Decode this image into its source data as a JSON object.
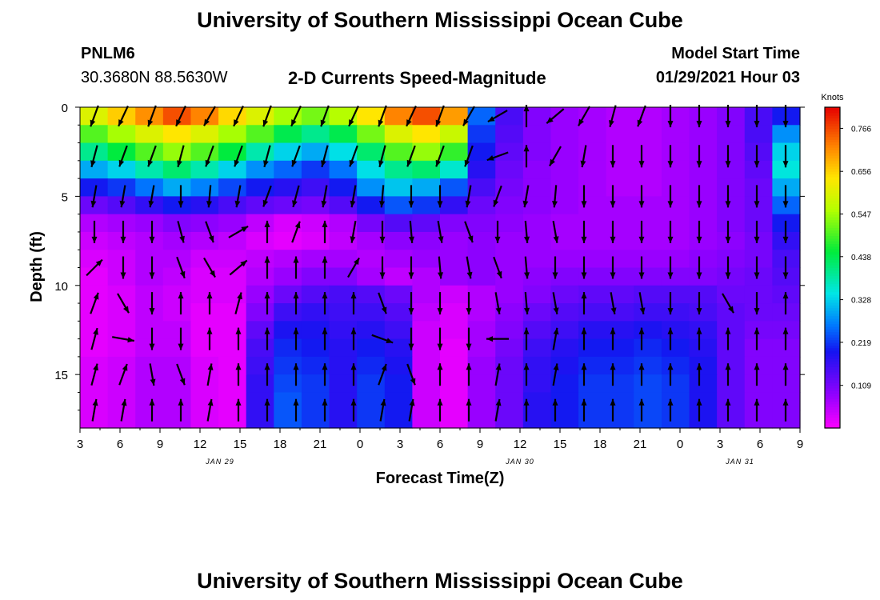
{
  "header": {
    "title_top": "University of Southern Mississippi Ocean Cube",
    "station_id": "PNLM6",
    "station_coords": "30.3680N 88.5630W",
    "chart_title": "2-D Currents Speed-Magnitude",
    "model_start_label": "Model Start Time",
    "model_start_value": "01/29/2021 Hour 03",
    "title_bottom": "University of Southern Mississippi Ocean Cube"
  },
  "chart_data": {
    "type": "heatmap",
    "title": "2-D Currents Speed-Magnitude",
    "xlabel": "Forecast Time(Z)",
    "ylabel": "Depth (ft)",
    "x_ticks": [
      "3",
      "6",
      "9",
      "12",
      "15",
      "18",
      "21",
      "0",
      "3",
      "6",
      "9",
      "12",
      "15",
      "18",
      "21",
      "0",
      "3",
      "6",
      "9"
    ],
    "date_labels": [
      {
        "label": "JAN 29",
        "at_tick": 3.5
      },
      {
        "label": "JAN 30",
        "at_tick": 11
      },
      {
        "label": "JAN 31",
        "at_tick": 16.5
      }
    ],
    "y_ticks": [
      0,
      5,
      10,
      15
    ],
    "ylim": [
      0,
      18
    ],
    "colorbar": {
      "unit": "Knots",
      "range": [
        0,
        0.82
      ],
      "tick_values": [
        0.766,
        0.656,
        0.547,
        0.438,
        0.328,
        0.219,
        0.109
      ],
      "tick_labels": [
        "0.766",
        "0.656",
        "0.547",
        "0.438",
        "0.328",
        "0.219",
        "0.109"
      ]
    },
    "speed_knots_by_depth": [
      {
        "depth_ft": 0.5,
        "values": [
          0.6,
          0.66,
          0.71,
          0.76,
          0.72,
          0.65,
          0.6,
          0.55,
          0.52,
          0.56,
          0.64,
          0.72,
          0.76,
          0.7,
          0.25,
          0.15,
          0.1,
          0.08,
          0.07,
          0.06,
          0.06,
          0.07,
          0.08,
          0.1,
          0.15,
          0.2
        ]
      },
      {
        "depth_ft": 1.5,
        "values": [
          0.5,
          0.55,
          0.6,
          0.64,
          0.6,
          0.55,
          0.5,
          0.44,
          0.4,
          0.44,
          0.52,
          0.6,
          0.64,
          0.58,
          0.22,
          0.14,
          0.1,
          0.08,
          0.07,
          0.06,
          0.06,
          0.07,
          0.08,
          0.1,
          0.15,
          0.28
        ]
      },
      {
        "depth_ft": 2.5,
        "values": [
          0.4,
          0.45,
          0.5,
          0.54,
          0.5,
          0.45,
          0.38,
          0.33,
          0.3,
          0.34,
          0.42,
          0.5,
          0.54,
          0.48,
          0.2,
          0.13,
          0.1,
          0.08,
          0.07,
          0.06,
          0.06,
          0.07,
          0.08,
          0.1,
          0.14,
          0.33
        ]
      },
      {
        "depth_ft": 3.5,
        "values": [
          0.3,
          0.33,
          0.38,
          0.42,
          0.38,
          0.33,
          0.28,
          0.25,
          0.22,
          0.26,
          0.34,
          0.4,
          0.42,
          0.36,
          0.18,
          0.12,
          0.09,
          0.08,
          0.07,
          0.06,
          0.06,
          0.07,
          0.08,
          0.1,
          0.13,
          0.35
        ]
      },
      {
        "depth_ft": 4.5,
        "values": [
          0.2,
          0.22,
          0.26,
          0.3,
          0.27,
          0.23,
          0.2,
          0.18,
          0.16,
          0.2,
          0.28,
          0.32,
          0.3,
          0.24,
          0.15,
          0.11,
          0.09,
          0.08,
          0.07,
          0.06,
          0.06,
          0.07,
          0.08,
          0.1,
          0.12,
          0.3
        ]
      },
      {
        "depth_ft": 5.5,
        "values": [
          0.12,
          0.14,
          0.17,
          0.2,
          0.18,
          0.15,
          0.13,
          0.12,
          0.11,
          0.14,
          0.2,
          0.24,
          0.22,
          0.17,
          0.12,
          0.1,
          0.09,
          0.08,
          0.07,
          0.07,
          0.07,
          0.07,
          0.08,
          0.1,
          0.12,
          0.25
        ]
      },
      {
        "depth_ft": 6.5,
        "values": [
          0.06,
          0.07,
          0.08,
          0.1,
          0.09,
          0.08,
          0.05,
          0.03,
          0.04,
          0.06,
          0.11,
          0.14,
          0.13,
          0.1,
          0.1,
          0.09,
          0.08,
          0.07,
          0.07,
          0.07,
          0.07,
          0.07,
          0.08,
          0.1,
          0.12,
          0.2
        ]
      },
      {
        "depth_ft": 7.5,
        "values": [
          0.04,
          0.05,
          0.06,
          0.07,
          0.06,
          0.05,
          0.03,
          0.02,
          0.03,
          0.05,
          0.07,
          0.09,
          0.09,
          0.08,
          0.09,
          0.08,
          0.08,
          0.07,
          0.07,
          0.07,
          0.07,
          0.07,
          0.08,
          0.09,
          0.11,
          0.17
        ]
      },
      {
        "depth_ft": 8.5,
        "values": [
          0.03,
          0.04,
          0.06,
          0.06,
          0.04,
          0.04,
          0.05,
          0.06,
          0.07,
          0.07,
          0.06,
          0.07,
          0.08,
          0.08,
          0.09,
          0.08,
          0.08,
          0.08,
          0.08,
          0.08,
          0.08,
          0.08,
          0.09,
          0.1,
          0.11,
          0.15
        ]
      },
      {
        "depth_ft": 9.5,
        "values": [
          0.02,
          0.04,
          0.06,
          0.05,
          0.03,
          0.03,
          0.06,
          0.08,
          0.1,
          0.1,
          0.07,
          0.05,
          0.06,
          0.08,
          0.09,
          0.08,
          0.09,
          0.1,
          0.1,
          0.1,
          0.1,
          0.1,
          0.1,
          0.11,
          0.12,
          0.14
        ]
      },
      {
        "depth_ft": 10.5,
        "values": [
          0.02,
          0.03,
          0.05,
          0.04,
          0.03,
          0.03,
          0.08,
          0.12,
          0.14,
          0.15,
          0.14,
          0.12,
          0.06,
          0.04,
          0.06,
          0.08,
          0.1,
          0.12,
          0.13,
          0.13,
          0.14,
          0.14,
          0.14,
          0.12,
          0.12,
          0.13
        ]
      },
      {
        "depth_ft": 11.5,
        "values": [
          0.02,
          0.03,
          0.05,
          0.04,
          0.02,
          0.02,
          0.1,
          0.16,
          0.17,
          0.16,
          0.16,
          0.14,
          0.05,
          0.03,
          0.06,
          0.09,
          0.12,
          0.14,
          0.15,
          0.15,
          0.16,
          0.16,
          0.15,
          0.13,
          0.12,
          0.12
        ]
      },
      {
        "depth_ft": 12.5,
        "values": [
          0.02,
          0.03,
          0.05,
          0.05,
          0.02,
          0.02,
          0.13,
          0.19,
          0.19,
          0.17,
          0.18,
          0.16,
          0.04,
          0.03,
          0.07,
          0.1,
          0.14,
          0.16,
          0.18,
          0.18,
          0.19,
          0.18,
          0.17,
          0.13,
          0.11,
          0.11
        ]
      },
      {
        "depth_ft": 13.5,
        "values": [
          0.02,
          0.03,
          0.05,
          0.05,
          0.02,
          0.02,
          0.15,
          0.21,
          0.2,
          0.18,
          0.2,
          0.18,
          0.04,
          0.02,
          0.07,
          0.11,
          0.16,
          0.18,
          0.2,
          0.2,
          0.21,
          0.2,
          0.18,
          0.13,
          0.1,
          0.1
        ]
      },
      {
        "depth_ft": 14.5,
        "values": [
          0.03,
          0.04,
          0.06,
          0.06,
          0.03,
          0.02,
          0.16,
          0.22,
          0.21,
          0.18,
          0.21,
          0.19,
          0.04,
          0.02,
          0.08,
          0.12,
          0.17,
          0.19,
          0.21,
          0.21,
          0.22,
          0.21,
          0.19,
          0.13,
          0.1,
          0.1
        ]
      },
      {
        "depth_ft": 15.5,
        "values": [
          0.03,
          0.04,
          0.06,
          0.06,
          0.03,
          0.02,
          0.17,
          0.23,
          0.22,
          0.18,
          0.22,
          0.2,
          0.04,
          0.02,
          0.08,
          0.12,
          0.17,
          0.2,
          0.22,
          0.22,
          0.23,
          0.22,
          0.19,
          0.13,
          0.1,
          0.1
        ]
      },
      {
        "depth_ft": 16.5,
        "values": [
          0.03,
          0.04,
          0.06,
          0.06,
          0.03,
          0.02,
          0.17,
          0.24,
          0.22,
          0.18,
          0.22,
          0.2,
          0.04,
          0.02,
          0.08,
          0.12,
          0.18,
          0.2,
          0.22,
          0.22,
          0.23,
          0.22,
          0.19,
          0.13,
          0.1,
          0.1
        ]
      },
      {
        "depth_ft": 17.5,
        "values": [
          0.03,
          0.04,
          0.06,
          0.06,
          0.03,
          0.02,
          0.17,
          0.24,
          0.22,
          0.18,
          0.22,
          0.2,
          0.04,
          0.02,
          0.08,
          0.12,
          0.18,
          0.2,
          0.22,
          0.22,
          0.23,
          0.22,
          0.19,
          0.13,
          0.1,
          0.1
        ]
      }
    ],
    "vector_depths_ft": [
      0.5,
      2.75,
      5,
      7,
      9,
      11,
      13,
      15,
      17
    ],
    "vector_directions_deg": [
      [
        200,
        205,
        200,
        205,
        210,
        205,
        200,
        205,
        200,
        205,
        200,
        205,
        200,
        210,
        240,
        0,
        230,
        210,
        195,
        200,
        180,
        180,
        180,
        180,
        180
      ],
      [
        195,
        200,
        200,
        195,
        200,
        200,
        195,
        200,
        195,
        200,
        195,
        200,
        200,
        200,
        250,
        0,
        210,
        190,
        180,
        180,
        180,
        180,
        180,
        180,
        180
      ],
      [
        190,
        190,
        190,
        180,
        185,
        190,
        200,
        195,
        190,
        190,
        185,
        180,
        180,
        190,
        200,
        190,
        185,
        180,
        180,
        180,
        180,
        180,
        180,
        180,
        180
      ],
      [
        180,
        180,
        180,
        165,
        160,
        60,
        0,
        20,
        0,
        190,
        180,
        175,
        170,
        160,
        180,
        175,
        170,
        180,
        180,
        180,
        180,
        180,
        180,
        180,
        180
      ],
      [
        45,
        180,
        180,
        160,
        150,
        50,
        0,
        0,
        0,
        30,
        180,
        180,
        175,
        170,
        160,
        175,
        180,
        180,
        180,
        180,
        180,
        180,
        180,
        180,
        180
      ],
      [
        20,
        150,
        180,
        0,
        0,
        15,
        0,
        0,
        0,
        0,
        160,
        180,
        180,
        180,
        170,
        175,
        170,
        0,
        170,
        170,
        180,
        180,
        150,
        180,
        0
      ],
      [
        15,
        100,
        180,
        180,
        0,
        0,
        0,
        0,
        0,
        0,
        110,
        180,
        180,
        180,
        270,
        0,
        10,
        0,
        0,
        0,
        0,
        0,
        0,
        0,
        0
      ],
      [
        15,
        20,
        170,
        160,
        10,
        0,
        0,
        0,
        0,
        0,
        20,
        160,
        0,
        0,
        10,
        0,
        10,
        0,
        0,
        0,
        0,
        0,
        0,
        0,
        0
      ],
      [
        10,
        10,
        0,
        0,
        10,
        0,
        0,
        0,
        0,
        0,
        10,
        10,
        0,
        0,
        10,
        0,
        0,
        0,
        0,
        0,
        0,
        0,
        0,
        0,
        0
      ]
    ]
  }
}
